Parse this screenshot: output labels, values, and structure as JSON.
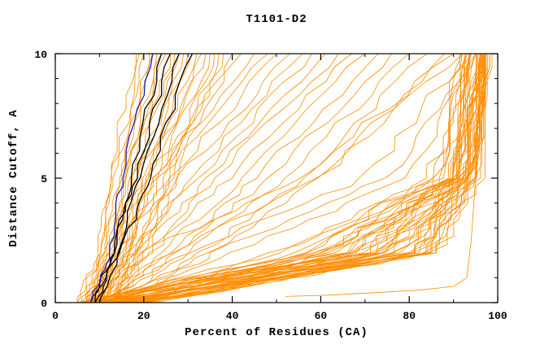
{
  "chart_data": {
    "type": "line",
    "title": "T1101-D2",
    "xlabel": "Percent of Residues (CA)",
    "ylabel": "Distance Cutoff, A",
    "xlim": [
      0,
      100
    ],
    "ylim": [
      0,
      10
    ],
    "x_major_ticks": [
      0,
      20,
      40,
      60,
      80,
      100
    ],
    "x_minor_ticks": [
      10,
      30,
      50,
      70,
      90
    ],
    "y_major_ticks": [
      0,
      5,
      10
    ],
    "y_minor_ticks": [
      1,
      2,
      3,
      4,
      6,
      7,
      8,
      9
    ],
    "grid": false,
    "legend": "none",
    "colors": {
      "orange": "#ff8c00",
      "black": "#000000",
      "blue": "#1b1bb4"
    },
    "anchor_cutoffs": [
      0,
      2,
      5,
      10
    ],
    "jitter_seed": 7,
    "jitter_by_group": {
      "s": 1.1,
      "m": 1.3,
      "w": 1.6,
      "b": 2.2,
      "k": 0.7
    },
    "curves": [
      {
        "c": "orange",
        "g": "s",
        "a": [
          5,
          9,
          12,
          18
        ]
      },
      {
        "c": "orange",
        "g": "s",
        "a": [
          5,
          10,
          13,
          19
        ]
      },
      {
        "c": "orange",
        "g": "s",
        "a": [
          6,
          10,
          13,
          20
        ]
      },
      {
        "c": "orange",
        "g": "s",
        "a": [
          6,
          11,
          14,
          21
        ]
      },
      {
        "c": "orange",
        "g": "s",
        "a": [
          7,
          11,
          14,
          22
        ]
      },
      {
        "c": "orange",
        "g": "s",
        "a": [
          7,
          12,
          15,
          23
        ]
      },
      {
        "c": "orange",
        "g": "s",
        "a": [
          7,
          12,
          16,
          24
        ]
      },
      {
        "c": "orange",
        "g": "s",
        "a": [
          8,
          12,
          16,
          25
        ]
      },
      {
        "c": "orange",
        "g": "s",
        "a": [
          8,
          13,
          17,
          26
        ]
      },
      {
        "c": "orange",
        "g": "s",
        "a": [
          8,
          13,
          17,
          27
        ]
      },
      {
        "c": "orange",
        "g": "s",
        "a": [
          9,
          14,
          18,
          28
        ]
      },
      {
        "c": "orange",
        "g": "s",
        "a": [
          9,
          14,
          18,
          29
        ]
      },
      {
        "c": "orange",
        "g": "s",
        "a": [
          9,
          15,
          19,
          30
        ]
      },
      {
        "c": "orange",
        "g": "s",
        "a": [
          10,
          15,
          20,
          31
        ]
      },
      {
        "c": "orange",
        "g": "s",
        "a": [
          10,
          16,
          20,
          32
        ]
      },
      {
        "c": "orange",
        "g": "s",
        "a": [
          10,
          16,
          21,
          33
        ]
      },
      {
        "c": "orange",
        "g": "s",
        "a": [
          11,
          17,
          22,
          34
        ]
      },
      {
        "c": "orange",
        "g": "s",
        "a": [
          11,
          17,
          23,
          35
        ]
      },
      {
        "c": "orange",
        "g": "s",
        "a": [
          12,
          18,
          24,
          36
        ]
      },
      {
        "c": "orange",
        "g": "s",
        "a": [
          12,
          19,
          25,
          37
        ]
      },
      {
        "c": "orange",
        "g": "s",
        "a": [
          13,
          20,
          26,
          38
        ]
      },
      {
        "c": "orange",
        "g": "s",
        "a": [
          13,
          21,
          27,
          40
        ]
      },
      {
        "c": "orange",
        "g": "m",
        "a": [
          6,
          12,
          20,
          42
        ]
      },
      {
        "c": "orange",
        "g": "m",
        "a": [
          7,
          13,
          22,
          45
        ]
      },
      {
        "c": "orange",
        "g": "m",
        "a": [
          7,
          14,
          24,
          48
        ]
      },
      {
        "c": "orange",
        "g": "m",
        "a": [
          8,
          15,
          26,
          50
        ]
      },
      {
        "c": "orange",
        "g": "m",
        "a": [
          8,
          16,
          28,
          53
        ]
      },
      {
        "c": "orange",
        "g": "m",
        "a": [
          9,
          17,
          30,
          56
        ]
      },
      {
        "c": "orange",
        "g": "m",
        "a": [
          9,
          18,
          32,
          58
        ]
      },
      {
        "c": "orange",
        "g": "m",
        "a": [
          10,
          19,
          34,
          61
        ]
      },
      {
        "c": "orange",
        "g": "m",
        "a": [
          10,
          20,
          36,
          64
        ]
      },
      {
        "c": "orange",
        "g": "m",
        "a": [
          11,
          22,
          39,
          67
        ]
      },
      {
        "c": "orange",
        "g": "m",
        "a": [
          11,
          24,
          42,
          70
        ]
      },
      {
        "c": "orange",
        "g": "m",
        "a": [
          12,
          26,
          45,
          73
        ]
      },
      {
        "c": "orange",
        "g": "m",
        "a": [
          12,
          28,
          48,
          76
        ]
      },
      {
        "c": "orange",
        "g": "m",
        "a": [
          13,
          30,
          52,
          80
        ]
      },
      {
        "c": "orange",
        "g": "m",
        "a": [
          14,
          33,
          56,
          84
        ]
      },
      {
        "c": "orange",
        "g": "m",
        "a": [
          15,
          36,
          60,
          88
        ]
      },
      {
        "c": "orange",
        "g": "w",
        "a": [
          10,
          30,
          70,
          93
        ]
      },
      {
        "c": "orange",
        "g": "w",
        "a": [
          9,
          25,
          60,
          92
        ]
      },
      {
        "c": "orange",
        "g": "w",
        "a": [
          11,
          35,
          75,
          94
        ]
      },
      {
        "c": "orange",
        "g": "w",
        "a": [
          8,
          20,
          55,
          90
        ]
      },
      {
        "c": "orange",
        "g": "w",
        "a": [
          12,
          40,
          80,
          95
        ]
      },
      {
        "c": "orange",
        "g": "b",
        "a": [
          5,
          55,
          86,
          91
        ]
      },
      {
        "c": "orange",
        "g": "b",
        "a": [
          6,
          58,
          87,
          92
        ]
      },
      {
        "c": "orange",
        "g": "b",
        "a": [
          6,
          60,
          87,
          92
        ]
      },
      {
        "c": "orange",
        "g": "b",
        "a": [
          7,
          62,
          88,
          93
        ]
      },
      {
        "c": "orange",
        "g": "b",
        "a": [
          7,
          64,
          88,
          93
        ]
      },
      {
        "c": "orange",
        "g": "b",
        "a": [
          8,
          65,
          88,
          93
        ]
      },
      {
        "c": "orange",
        "g": "b",
        "a": [
          8,
          66,
          89,
          94
        ]
      },
      {
        "c": "orange",
        "g": "b",
        "a": [
          9,
          67,
          89,
          94
        ]
      },
      {
        "c": "orange",
        "g": "b",
        "a": [
          9,
          68,
          89,
          94
        ]
      },
      {
        "c": "orange",
        "g": "b",
        "a": [
          10,
          69,
          90,
          94
        ]
      },
      {
        "c": "orange",
        "g": "b",
        "a": [
          10,
          70,
          90,
          95
        ]
      },
      {
        "c": "orange",
        "g": "b",
        "a": [
          11,
          71,
          90,
          95
        ]
      },
      {
        "c": "orange",
        "g": "b",
        "a": [
          11,
          72,
          90,
          95
        ]
      },
      {
        "c": "orange",
        "g": "b",
        "a": [
          12,
          73,
          91,
          95
        ]
      },
      {
        "c": "orange",
        "g": "b",
        "a": [
          12,
          74,
          91,
          95
        ]
      },
      {
        "c": "orange",
        "g": "b",
        "a": [
          13,
          75,
          91,
          96
        ]
      },
      {
        "c": "orange",
        "g": "b",
        "a": [
          13,
          76,
          91,
          96
        ]
      },
      {
        "c": "orange",
        "g": "b",
        "a": [
          14,
          77,
          92,
          96
        ]
      },
      {
        "c": "orange",
        "g": "b",
        "a": [
          14,
          78,
          92,
          96
        ]
      },
      {
        "c": "orange",
        "g": "b",
        "a": [
          15,
          78,
          92,
          96
        ]
      },
      {
        "c": "orange",
        "g": "b",
        "a": [
          15,
          79,
          92,
          96
        ]
      },
      {
        "c": "orange",
        "g": "b",
        "a": [
          16,
          80,
          92,
          96
        ]
      },
      {
        "c": "orange",
        "g": "b",
        "a": [
          16,
          80,
          93,
          96
        ]
      },
      {
        "c": "orange",
        "g": "b",
        "a": [
          17,
          81,
          93,
          97
        ]
      },
      {
        "c": "orange",
        "g": "b",
        "a": [
          17,
          81,
          93,
          97
        ]
      },
      {
        "c": "orange",
        "g": "b",
        "a": [
          18,
          82,
          93,
          97
        ]
      },
      {
        "c": "orange",
        "g": "b",
        "a": [
          18,
          82,
          93,
          97
        ]
      },
      {
        "c": "orange",
        "g": "b",
        "a": [
          19,
          83,
          93,
          97
        ]
      },
      {
        "c": "orange",
        "g": "b",
        "a": [
          19,
          83,
          94,
          97
        ]
      },
      {
        "c": "orange",
        "g": "b",
        "a": [
          20,
          84,
          94,
          97
        ]
      },
      {
        "c": "orange",
        "g": "b",
        "a": [
          20,
          84,
          94,
          97
        ]
      },
      {
        "c": "orange",
        "g": "b",
        "a": [
          21,
          85,
          94,
          97
        ]
      },
      {
        "c": "orange",
        "g": "b",
        "a": [
          21,
          85,
          94,
          97
        ]
      },
      {
        "c": "orange",
        "g": "b",
        "a": [
          22,
          86,
          94,
          97
        ]
      },
      {
        "c": "orange",
        "g": "b",
        "a": [
          22,
          86,
          95,
          97
        ]
      },
      {
        "c": "orange",
        "g": "b",
        "a": [
          8,
          60,
          90,
          95
        ]
      },
      {
        "c": "orange",
        "g": "b",
        "a": [
          10,
          65,
          91,
          96
        ]
      },
      {
        "c": "orange",
        "g": "b",
        "a": [
          12,
          68,
          92,
          96
        ]
      },
      {
        "c": "orange",
        "g": "b",
        "a": [
          14,
          72,
          93,
          97
        ]
      },
      {
        "c": "orange",
        "g": "b",
        "a": [
          16,
          75,
          94,
          97
        ]
      },
      {
        "c": "orange",
        "g": "b",
        "a": [
          6,
          50,
          85,
          92
        ]
      },
      {
        "c": "orange",
        "g": "b",
        "a": [
          7,
          52,
          86,
          93
        ]
      },
      {
        "c": "orange",
        "g": "b",
        "a": [
          9,
          56,
          88,
          94
        ]
      },
      {
        "c": "orange",
        "g": "b",
        "a": [
          11,
          58,
          89,
          95
        ]
      },
      {
        "c": "orange",
        "g": "b",
        "a": [
          13,
          62,
          90,
          96
        ]
      },
      {
        "c": "orange",
        "g": "b",
        "p": [
          [
            52,
            0.25
          ],
          [
            62,
            0.3
          ],
          [
            72,
            0.4
          ],
          [
            82,
            0.5
          ],
          [
            90,
            0.65
          ],
          [
            93,
            1.0
          ],
          [
            94,
            2.5
          ],
          [
            95,
            5
          ],
          [
            95.5,
            7.5
          ],
          [
            96,
            9.8
          ]
        ]
      },
      {
        "c": "black",
        "g": "k",
        "a": [
          8,
          13,
          17,
          24
        ]
      },
      {
        "c": "black",
        "g": "k",
        "a": [
          9,
          13,
          18,
          26
        ]
      },
      {
        "c": "black",
        "g": "k",
        "a": [
          9,
          14,
          19,
          28
        ]
      },
      {
        "c": "black",
        "g": "k",
        "a": [
          10,
          15,
          21,
          31
        ]
      },
      {
        "c": "blue",
        "g": "k",
        "a": [
          8,
          12,
          15,
          22
        ]
      }
    ]
  }
}
